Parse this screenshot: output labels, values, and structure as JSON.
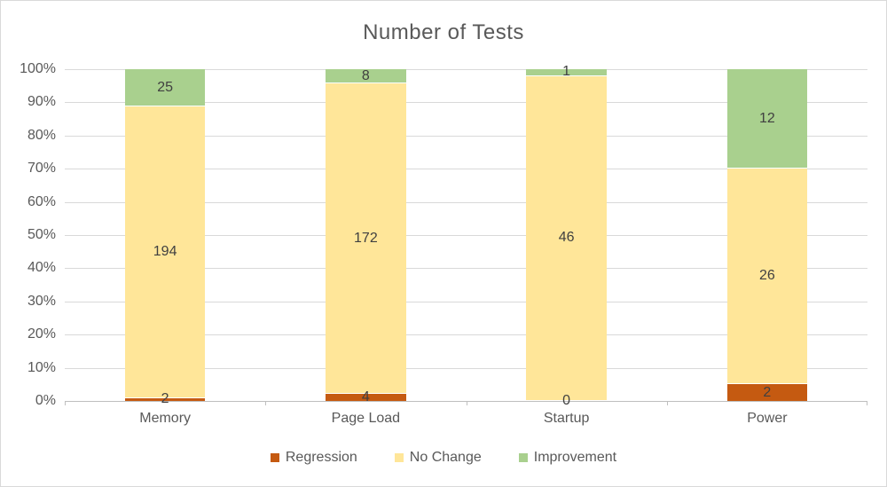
{
  "chart_data": {
    "type": "bar",
    "variant": "100-percent-stacked-column",
    "title": "Number of Tests",
    "categories": [
      "Memory",
      "Page Load",
      "Startup",
      "Power"
    ],
    "series": [
      {
        "name": "Regression",
        "color": "#C55A11",
        "values": [
          2,
          4,
          0,
          2
        ]
      },
      {
        "name": "No Change",
        "color": "#FFE699",
        "values": [
          194,
          172,
          46,
          26
        ]
      },
      {
        "name": "Improvement",
        "color": "#A9D08E",
        "values": [
          25,
          8,
          1,
          12
        ]
      }
    ],
    "y_axis": {
      "min": 0,
      "max": 100,
      "unit": "%",
      "ticks": [
        "100%",
        "90%",
        "80%",
        "70%",
        "60%",
        "50%",
        "40%",
        "30%",
        "20%",
        "10%",
        "0%"
      ]
    },
    "x_axis": {
      "tick_marks_between_categories": true
    },
    "legend_position": "bottom",
    "grid": true
  },
  "style": {
    "background": "#FFFFFF",
    "border_color": "#D9D9D9",
    "title_color": "#595959",
    "axis_label_color": "#595959",
    "data_label_color": "#404040",
    "gridline_color": "#D9D9D9",
    "axis_line_color": "#BFBFBF"
  }
}
